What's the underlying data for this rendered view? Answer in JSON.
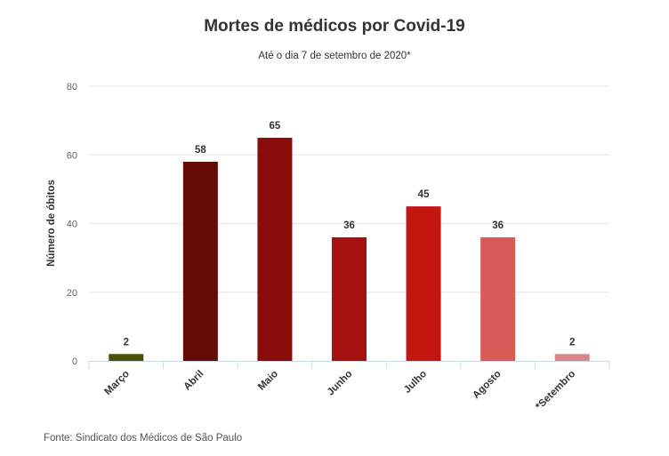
{
  "chart_data": {
    "type": "bar",
    "title": "Mortes de médicos por Covid-19",
    "subtitle": "Até o dia 7 de setembro de 2020*",
    "xlabel": "",
    "ylabel": "Número de óbitos",
    "ylim": [
      0,
      80
    ],
    "yticks": [
      0,
      20,
      40,
      60,
      80
    ],
    "grid": true,
    "categories": [
      "Março",
      "Abril",
      "Maio",
      "Junho",
      "Julho",
      "Agosto",
      "*Setembro"
    ],
    "values": [
      2,
      58,
      65,
      36,
      45,
      36,
      2
    ],
    "colors": [
      "#4a5207",
      "#640b05",
      "#8b0d0a",
      "#a5110f",
      "#c2160f",
      "#d85b57",
      "#d98585"
    ],
    "data_labels": [
      "2",
      "58",
      "65",
      "36",
      "45",
      "36",
      "2"
    ],
    "source": "Fonte: Sindicato dos Médicos de São Paulo"
  }
}
